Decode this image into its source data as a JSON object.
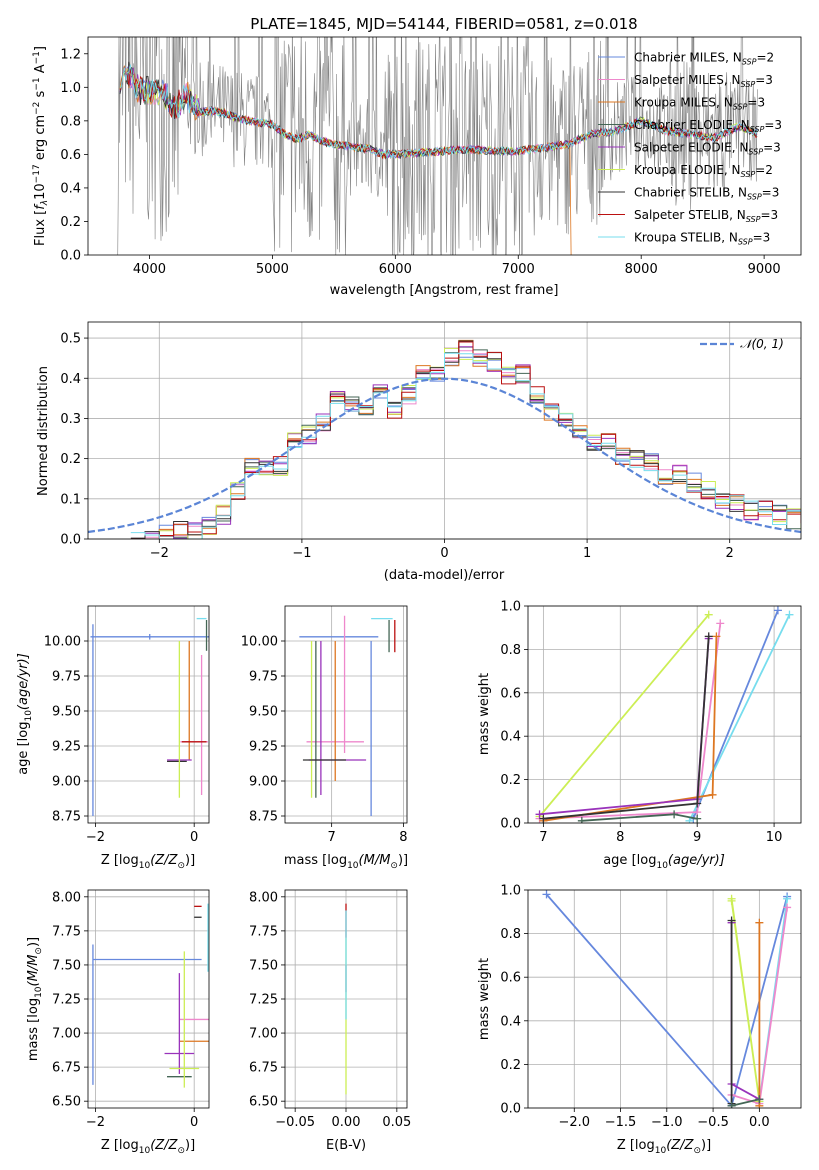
{
  "figure_title": "PLATE=1845, MJD=54144, FIBERID=0581, z=0.018",
  "colors": {
    "series": [
      "#6688dd",
      "#ee88cc",
      "#dd7722",
      "#446655",
      "#9933bb",
      "#ccee55",
      "#333333",
      "#bb1111",
      "#77ddee"
    ],
    "data": "#808080",
    "normal": "#5b85d6"
  },
  "chart_data": [
    {
      "id": "spectrum",
      "type": "line",
      "title": "PLATE=1845, MJD=54144, FIBERID=0581, z=0.018",
      "xlabel": "wavelength [Angstrom, rest frame]",
      "ylabel_main": "Flux [",
      "ylabel_sym": "f",
      "ylabel_sub": "λ",
      "ylabel_mid": "10",
      "ylabel_sup1": "−17",
      "ylabel_rest": " erg cm",
      "ylabel_sup2": "−2",
      "ylabel_rest2": " s",
      "ylabel_sup3": "−1",
      "ylabel_rest3": " A",
      "ylabel_sup4": "−1",
      "ylabel_end": "]",
      "xlim": [
        3500,
        9300
      ],
      "ylim": [
        0,
        1.3
      ],
      "xticks": [
        4000,
        5000,
        6000,
        7000,
        8000,
        9000
      ],
      "yticks": [
        0.0,
        0.2,
        0.4,
        0.6,
        0.8,
        1.0,
        1.2
      ],
      "legend_position": "top-right",
      "legend": [
        {
          "name": "Chabrier MILES",
          "nssp": "2"
        },
        {
          "name": "Salpeter MILES",
          "nssp": "3"
        },
        {
          "name": "Kroupa MILES",
          "nssp": "3"
        },
        {
          "name": "Chabrier ELODIE",
          "nssp": "3"
        },
        {
          "name": "Salpeter ELODIE",
          "nssp": "3"
        },
        {
          "name": "Kroupa ELODIE",
          "nssp": "2"
        },
        {
          "name": "Chabrier STELIB",
          "nssp": "3"
        },
        {
          "name": "Salpeter STELIB",
          "nssp": "3"
        },
        {
          "name": "Kroupa STELIB",
          "nssp": "3"
        }
      ],
      "nssp_label": "N",
      "nssp_sub": "SSP",
      "data_range": [
        3740,
        8950
      ],
      "model_envelope": {
        "x": [
          3750,
          3800,
          3900,
          4000,
          4100,
          4200,
          4300,
          4400,
          4500,
          4600,
          4700,
          4800,
          4900,
          5000,
          5100,
          5200,
          5300,
          5400,
          5500,
          5600,
          5700,
          5800,
          5900,
          6000,
          6200,
          6400,
          6600,
          6800,
          7000,
          7200,
          7400,
          7600,
          7800,
          8000,
          8200,
          8400,
          8600,
          8800,
          8950
        ],
        "y": [
          0.95,
          1.12,
          1.0,
          0.97,
          0.98,
          0.88,
          0.95,
          0.85,
          0.86,
          0.85,
          0.82,
          0.8,
          0.79,
          0.78,
          0.72,
          0.69,
          0.72,
          0.68,
          0.66,
          0.65,
          0.64,
          0.63,
          0.6,
          0.6,
          0.61,
          0.62,
          0.63,
          0.62,
          0.62,
          0.64,
          0.66,
          0.72,
          0.74,
          0.8,
          0.74,
          0.72,
          0.7,
          0.77,
          0.72
        ]
      },
      "kroupa_miles_end": 7430
    },
    {
      "id": "residuals",
      "type": "histogram",
      "xlabel": "(data-model)/error",
      "ylabel": "Normed distribution",
      "xlim": [
        -2.5,
        2.5
      ],
      "ylim": [
        0,
        0.54
      ],
      "xticks": [
        -2,
        -1,
        0,
        1,
        2
      ],
      "yticks": [
        0.0,
        0.1,
        0.2,
        0.3,
        0.4,
        0.5
      ],
      "legend_position": "top-right",
      "normal_label": "𝒩(0, 1)",
      "bin_width": 0.1,
      "bin_start": -2.2,
      "base_hist": [
        0.0,
        0.0,
        0.01,
        0.02,
        0.02,
        0.03,
        0.06,
        0.12,
        0.18,
        0.17,
        0.18,
        0.24,
        0.26,
        0.29,
        0.36,
        0.33,
        0.31,
        0.36,
        0.32,
        0.36,
        0.42,
        0.41,
        0.45,
        0.47,
        0.45,
        0.44,
        0.41,
        0.41,
        0.36,
        0.32,
        0.29,
        0.27,
        0.24,
        0.24,
        0.21,
        0.2,
        0.19,
        0.16,
        0.16,
        0.14,
        0.12,
        0.1,
        0.09,
        0.07,
        0.07,
        0.06,
        0.05,
        0.05,
        0.04,
        0.03
      ]
    },
    {
      "id": "age_vs_Z",
      "type": "errorbar",
      "xlabel": "Z [log",
      "xlabel_sub": "10",
      "xlabel_tail": "(Z/Z",
      "xlabel_sun_sub": "⊙",
      "xlabel_end": ")]",
      "ylabel": "age  [log",
      "ylabel_sub": "10",
      "ylabel_tail": "(age/yr)]",
      "xlim": [
        -2.15,
        0.3
      ],
      "ylim": [
        8.7,
        10.25
      ],
      "xticks": [
        -2,
        0
      ],
      "yticks": [
        8.75,
        9.0,
        9.25,
        9.5,
        9.75,
        10.0
      ],
      "points": [
        {
          "x": -0.9,
          "y": 10.03,
          "xerr": [
            1.2,
            1.2
          ],
          "yerr": [
            0.02,
            0.02
          ],
          "c": 0
        },
        {
          "x": -2.05,
          "y": 9.5,
          "xerr": [
            0.0,
            0.0
          ],
          "yerr": [
            0.75,
            0.62
          ],
          "c": 0
        },
        {
          "x": 0.15,
          "y": 10.16,
          "xerr": [
            0.1,
            0.1
          ],
          "yerr": [
            0.0,
            0.0
          ],
          "c": 8
        },
        {
          "x": 0.25,
          "y": 10.05,
          "xerr": [
            0.0,
            0.0
          ],
          "yerr": [
            0.12,
            0.1
          ],
          "c": 3
        },
        {
          "x": 0.0,
          "y": 9.28,
          "xerr": [
            0.28,
            0.28
          ],
          "yerr": [
            0.0,
            0.0
          ],
          "c": 1
        },
        {
          "x": 0.15,
          "y": 9.6,
          "xerr": [
            0.0,
            0.0
          ],
          "yerr": [
            0.7,
            0.3
          ],
          "c": 1
        },
        {
          "x": -0.1,
          "y": 9.6,
          "xerr": [
            0.0,
            0.0
          ],
          "yerr": [
            0.45,
            0.4
          ],
          "c": 2
        },
        {
          "x": -0.3,
          "y": 9.15,
          "xerr": [
            0.25,
            0.25
          ],
          "yerr": [
            0.0,
            0.0
          ],
          "c": 4
        },
        {
          "x": -0.35,
          "y": 9.14,
          "xerr": [
            0.2,
            0.2
          ],
          "yerr": [
            0.0,
            0.0
          ],
          "c": 6
        },
        {
          "x": -0.3,
          "y": 9.15,
          "xerr": [
            0.0,
            0.0
          ],
          "yerr": [
            0.27,
            0.85
          ],
          "c": 5
        },
        {
          "x": 0.0,
          "y": 9.28,
          "xerr": [
            0.25,
            0.25
          ],
          "yerr": [
            0.0,
            0.0
          ],
          "c": 7
        }
      ]
    },
    {
      "id": "age_vs_mass",
      "type": "errorbar",
      "xlabel": "mass [log",
      "xlabel_sub": "10",
      "xlabel_tail": "(M/M",
      "xlabel_sun_sub": "⊙",
      "xlabel_end": ")]",
      "xlim": [
        6.35,
        8.05
      ],
      "ylim": [
        8.7,
        10.25
      ],
      "xticks": [
        7,
        8
      ],
      "yticks": [
        8.75,
        9.0,
        9.25,
        9.5,
        9.75,
        10.0
      ],
      "points": [
        {
          "x": 7.0,
          "y": 10.03,
          "xerr": [
            0.45,
            0.65
          ],
          "yerr": [
            0.0,
            0.0
          ],
          "c": 0
        },
        {
          "x": 7.55,
          "y": 9.4,
          "xerr": [
            0.0,
            0.0
          ],
          "yerr": [
            0.65,
            0.6
          ],
          "c": 0
        },
        {
          "x": 7.7,
          "y": 10.16,
          "xerr": [
            0.15,
            0.15
          ],
          "yerr": [
            0.0,
            0.0
          ],
          "c": 8
        },
        {
          "x": 7.88,
          "y": 10.05,
          "xerr": [
            0.0,
            0.0
          ],
          "yerr": [
            0.13,
            0.1
          ],
          "c": 7
        },
        {
          "x": 7.8,
          "y": 10.05,
          "xerr": [
            0.0,
            0.0
          ],
          "yerr": [
            0.13,
            0.1
          ],
          "c": 3
        },
        {
          "x": 7.0,
          "y": 9.28,
          "xerr": [
            0.35,
            0.45
          ],
          "yerr": [
            0.0,
            0.0
          ],
          "c": 1
        },
        {
          "x": 7.18,
          "y": 9.5,
          "xerr": [
            0.0,
            0.0
          ],
          "yerr": [
            0.3,
            0.68
          ],
          "c": 1
        },
        {
          "x": 6.93,
          "y": 9.15,
          "xerr": [
            0.25,
            0.55
          ],
          "yerr": [
            0.0,
            0.0
          ],
          "c": 4
        },
        {
          "x": 7.05,
          "y": 9.5,
          "xerr": [
            0.0,
            0.0
          ],
          "yerr": [
            0.5,
            0.5
          ],
          "c": 2
        },
        {
          "x": 6.85,
          "y": 9.5,
          "xerr": [
            0.0,
            0.0
          ],
          "yerr": [
            0.6,
            0.5
          ],
          "c": 4
        },
        {
          "x": 6.72,
          "y": 9.44,
          "xerr": [
            0.0,
            0.0
          ],
          "yerr": [
            0.56,
            0.56
          ],
          "c": 5
        },
        {
          "x": 6.78,
          "y": 9.44,
          "xerr": [
            0.0,
            0.0
          ],
          "yerr": [
            0.56,
            0.56
          ],
          "c": 3
        },
        {
          "x": 6.9,
          "y": 9.15,
          "xerr": [
            0.3,
            0.3
          ],
          "yerr": [
            0.0,
            0.0
          ],
          "c": 6
        }
      ]
    },
    {
      "id": "mass_weight_vs_age",
      "type": "line",
      "xlabel": "age  [log",
      "xlabel_sub": "10",
      "xlabel_tail": "(age/yr)]",
      "ylabel": "mass weight",
      "xlim": [
        6.8,
        10.35
      ],
      "ylim": [
        0,
        1.0
      ],
      "xticks": [
        7,
        8,
        9,
        10
      ],
      "yticks": [
        0.0,
        0.2,
        0.4,
        0.6,
        0.8,
        1.0
      ],
      "series": [
        {
          "c": 5,
          "x": [
            6.95,
            9.15
          ],
          "y": [
            0.03,
            0.96
          ]
        },
        {
          "c": 0,
          "x": [
            8.95,
            10.05
          ],
          "y": [
            0.02,
            0.98
          ]
        },
        {
          "c": 8,
          "x": [
            8.9,
            10.2
          ],
          "y": [
            0.01,
            0.96
          ]
        },
        {
          "c": 1,
          "x": [
            6.95,
            9.0,
            9.3
          ],
          "y": [
            0.02,
            0.05,
            0.92
          ]
        },
        {
          "c": 2,
          "x": [
            7.0,
            9.2,
            9.25
          ],
          "y": [
            0.01,
            0.13,
            0.86
          ]
        },
        {
          "c": 4,
          "x": [
            6.95,
            9.0,
            9.15
          ],
          "y": [
            0.04,
            0.11,
            0.85
          ]
        },
        {
          "c": 6,
          "x": [
            7.0,
            9.0,
            9.15
          ],
          "y": [
            0.02,
            0.09,
            0.86
          ]
        },
        {
          "c": 3,
          "x": [
            7.5,
            8.7,
            9.0
          ],
          "y": [
            0.01,
            0.04,
            0.02
          ]
        }
      ]
    },
    {
      "id": "mass_vs_Z",
      "type": "errorbar",
      "xlabel": "Z [log",
      "xlabel_sub": "10",
      "xlabel_tail": "(Z/Z",
      "xlabel_sun_sub": "⊙",
      "xlabel_end": ")]",
      "ylabel": "mass [log",
      "ylabel_sub": "10",
      "ylabel_tail": "(M/M",
      "ylabel_sun_sub": "⊙",
      "ylabel_end": ")]",
      "xlim": [
        -2.15,
        0.3
      ],
      "ylim": [
        6.45,
        8.05
      ],
      "xticks": [
        -2,
        0
      ],
      "yticks": [
        6.5,
        6.75,
        7.0,
        7.25,
        7.5,
        7.75,
        8.0
      ],
      "points": [
        {
          "x": -0.95,
          "y": 7.54,
          "xerr": [
            1.1,
            1.1
          ],
          "yerr": [
            0.0,
            0.0
          ],
          "c": 0
        },
        {
          "x": -2.05,
          "y": 7.15,
          "xerr": [
            0.0,
            0.0
          ],
          "yerr": [
            0.53,
            0.5
          ],
          "c": 0
        },
        {
          "x": 0.15,
          "y": 7.93,
          "xerr": [
            0.15,
            0.0
          ],
          "yerr": [
            0.0,
            0.0
          ],
          "c": 7
        },
        {
          "x": 0.15,
          "y": 7.85,
          "xerr": [
            0.15,
            0.0
          ],
          "yerr": [
            0.0,
            0.0
          ],
          "c": 6
        },
        {
          "x": 0.28,
          "y": 7.65,
          "xerr": [
            0.0,
            0.0
          ],
          "yerr": [
            0.2,
            0.3
          ],
          "c": 8
        },
        {
          "x": 0.0,
          "y": 7.1,
          "xerr": [
            0.3,
            0.3
          ],
          "yerr": [
            0.0,
            0.0
          ],
          "c": 1
        },
        {
          "x": 0.0,
          "y": 6.94,
          "xerr": [
            0.3,
            0.3
          ],
          "yerr": [
            0.0,
            0.0
          ],
          "c": 2
        },
        {
          "x": -0.3,
          "y": 6.85,
          "xerr": [
            0.3,
            0.3
          ],
          "yerr": [
            0.0,
            0.0
          ],
          "c": 4
        },
        {
          "x": -0.3,
          "y": 7.3,
          "xerr": [
            0.0,
            0.0
          ],
          "yerr": [
            0.6,
            0.14
          ],
          "c": 4
        },
        {
          "x": -0.3,
          "y": 6.68,
          "xerr": [
            0.25,
            0.25
          ],
          "yerr": [
            0.0,
            0.0
          ],
          "c": 3
        },
        {
          "x": -0.2,
          "y": 6.74,
          "xerr": [
            0.3,
            0.3
          ],
          "yerr": [
            0.0,
            0.0
          ],
          "c": 5
        },
        {
          "x": -0.2,
          "y": 7.0,
          "xerr": [
            0.0,
            0.0
          ],
          "yerr": [
            0.4,
            0.6
          ],
          "c": 5
        }
      ]
    },
    {
      "id": "mass_vs_ebv",
      "type": "errorbar",
      "xlabel": "E(B-V)",
      "xlim": [
        -0.06,
        0.06
      ],
      "ylim": [
        6.45,
        8.05
      ],
      "xticks": [
        -0.05,
        0.0,
        0.05
      ],
      "xticklabels": [
        "−0.05",
        "0.00",
        "0.05"
      ],
      "yticks": [
        6.5,
        6.75,
        7.0,
        7.25,
        7.5,
        7.75,
        8.0
      ],
      "points": [
        {
          "x": 0.0,
          "y": 7.8,
          "xerr": [
            0.0,
            0.0
          ],
          "yerr": [
            0.1,
            0.15
          ],
          "c": 7
        },
        {
          "x": 0.0,
          "y": 7.4,
          "xerr": [
            0.0,
            0.0
          ],
          "yerr": [
            0.1,
            0.1
          ],
          "c": 4
        },
        {
          "x": 0.0,
          "y": 7.1,
          "xerr": [
            0.0,
            0.0
          ],
          "yerr": [
            0.55,
            0.6
          ],
          "c": 5
        },
        {
          "x": 0.0,
          "y": 7.5,
          "xerr": [
            0.0,
            0.0
          ],
          "yerr": [
            0.4,
            0.4
          ],
          "c": 8
        }
      ]
    },
    {
      "id": "mass_weight_vs_Z",
      "type": "line",
      "xlabel": "Z [log",
      "xlabel_sub": "10",
      "xlabel_tail": "(Z/Z",
      "xlabel_sun_sub": "⊙",
      "xlabel_end": ")]",
      "ylabel": "mass weight",
      "xlim": [
        -2.5,
        0.45
      ],
      "ylim": [
        0,
        1.0
      ],
      "xticks": [
        -2.0,
        -1.5,
        -1.0,
        -0.5,
        0.0
      ],
      "xticklabels": [
        "−2.0",
        "−1.5",
        "−1.0",
        "−0.5",
        "0.0"
      ],
      "yticks": [
        0.0,
        0.2,
        0.4,
        0.6,
        0.8,
        1.0
      ],
      "series": [
        {
          "c": 0,
          "x": [
            -2.3,
            -0.3,
            0.3
          ],
          "y": [
            0.98,
            0.01,
            0.97
          ]
        },
        {
          "c": 8,
          "x": [
            0.0,
            0.3
          ],
          "y": [
            0.03,
            0.96
          ]
        },
        {
          "c": 1,
          "x": [
            -0.3,
            0.0,
            0.3
          ],
          "y": [
            0.06,
            0.02,
            0.92
          ]
        },
        {
          "c": 5,
          "x": [
            -0.3,
            0.0,
            -0.3
          ],
          "y": [
            0.96,
            0.03,
            0.95
          ]
        },
        {
          "c": 2,
          "x": [
            0.0,
            0.0
          ],
          "y": [
            0.01,
            0.85
          ]
        },
        {
          "c": 4,
          "x": [
            -0.3,
            -0.3,
            0.0
          ],
          "y": [
            0.85,
            0.11,
            0.04
          ]
        },
        {
          "c": 6,
          "x": [
            -0.3,
            -0.3
          ],
          "y": [
            0.86,
            0.02
          ]
        },
        {
          "c": 3,
          "x": [
            -0.3,
            0.0
          ],
          "y": [
            0.01,
            0.04
          ]
        }
      ]
    }
  ]
}
